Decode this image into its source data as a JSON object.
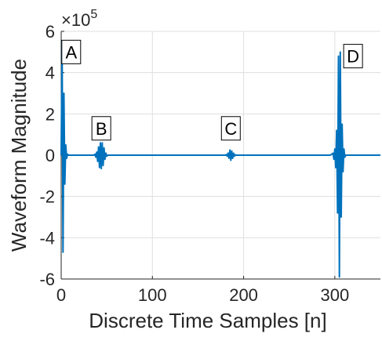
{
  "chart_data": {
    "type": "line",
    "xlabel": "Discrete Time Samples [n]",
    "ylabel": "Waveform Magnitude",
    "x_ticks": [
      0,
      100,
      200,
      300
    ],
    "y_ticks": [
      -6,
      -4,
      -2,
      0,
      2,
      4,
      6
    ],
    "y_tick_labels": [
      "-6",
      "-4",
      "-2",
      "0",
      "2",
      "4",
      "6"
    ],
    "y_exponent_label": "×10",
    "y_exponent": "5",
    "xlim": [
      0,
      350
    ],
    "ylim": [
      -600000,
      600000
    ],
    "grid": true,
    "line_color": "#0072BD",
    "annotations": [
      {
        "label": "A",
        "x": 11,
        "y": 500000
      },
      {
        "label": "B",
        "x": 44,
        "y": 130000
      },
      {
        "label": "C",
        "x": 186,
        "y": 130000
      },
      {
        "label": "D",
        "x": 320,
        "y": 480000
      }
    ],
    "series": [
      {
        "values": {
          "x": [
            0,
            1,
            2,
            3,
            4,
            5,
            6,
            7,
            8,
            9,
            10,
            11,
            12,
            13,
            14,
            15,
            20,
            30,
            36,
            37,
            38,
            39,
            40,
            41,
            42,
            43,
            44,
            45,
            46,
            47,
            48,
            49,
            50,
            51,
            52,
            53,
            55,
            60,
            100,
            150,
            180,
            181,
            182,
            183,
            184,
            185,
            186,
            187,
            188,
            189,
            190,
            191,
            192,
            193,
            195,
            200,
            250,
            290,
            295,
            298,
            299,
            300,
            301,
            302,
            303,
            304,
            305,
            306,
            307,
            308,
            309,
            310,
            311,
            312,
            313,
            314,
            315,
            316,
            317,
            318,
            320,
            330,
            350
          ],
          "y": [
            0,
            550000,
            -470000,
            300000,
            -140000,
            50000,
            -15000,
            5000,
            0,
            0,
            0,
            0,
            0,
            0,
            0,
            0,
            0,
            0,
            0,
            5000,
            -10000,
            15000,
            -30000,
            40000,
            -60000,
            60000,
            -65000,
            60000,
            -50000,
            35000,
            -20000,
            10000,
            -5000,
            0,
            0,
            0,
            0,
            0,
            0,
            0,
            0,
            3000,
            -5000,
            10000,
            -15000,
            25000,
            -25000,
            20000,
            -15000,
            10000,
            -5000,
            2000,
            0,
            0,
            0,
            0,
            0,
            0,
            0,
            10000,
            -20000,
            30000,
            -60000,
            120000,
            -280000,
            480000,
            -590000,
            500000,
            -300000,
            150000,
            -80000,
            30000,
            -10000,
            0,
            0,
            0,
            0,
            0,
            0,
            0,
            0,
            0,
            0
          ]
        }
      }
    ]
  }
}
